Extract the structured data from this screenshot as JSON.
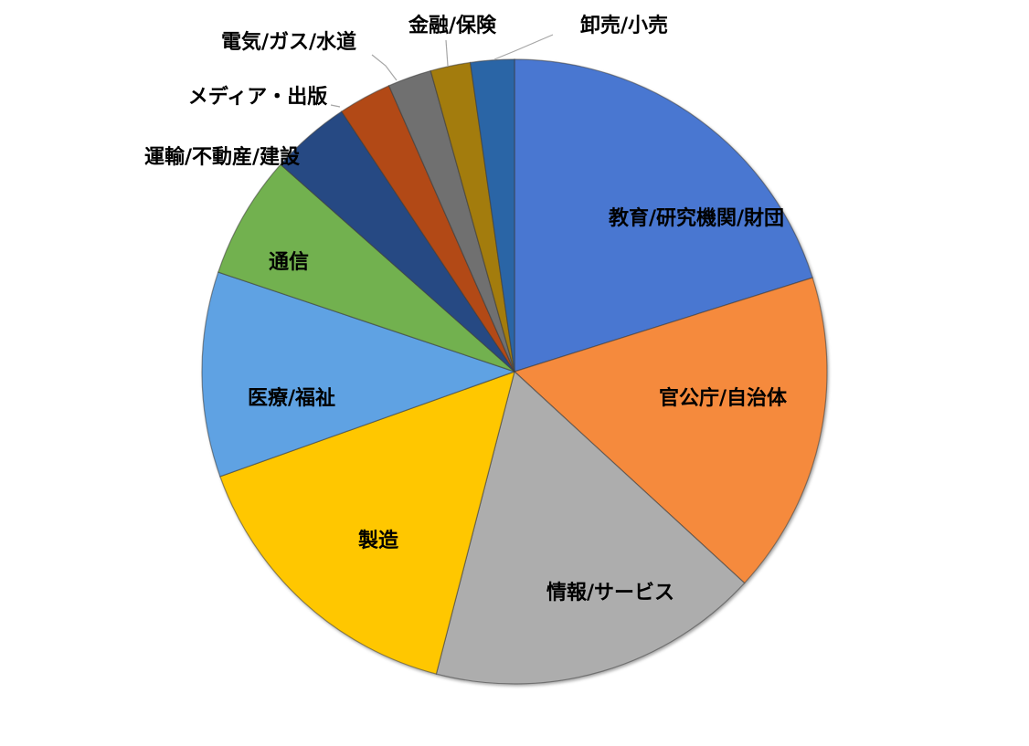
{
  "chart_data": {
    "type": "pie",
    "title": "",
    "legend": "none",
    "start_angle_deg": 0,
    "direction": "clockwise",
    "slices": [
      {
        "label": "教育/研究機関/財団",
        "value": 20.5,
        "color": "#4877d1",
        "label_placement": "inside"
      },
      {
        "label": "官公庁/自治体",
        "value": 17.0,
        "color": "#f58a3c",
        "label_placement": "inside"
      },
      {
        "label": "情報/サービス",
        "value": 17.5,
        "color": "#adadad",
        "label_placement": "inside"
      },
      {
        "label": "製造",
        "value": 15.8,
        "color": "#ffc702",
        "label_placement": "inside"
      },
      {
        "label": "医療/福祉",
        "value": 10.8,
        "color": "#5ea2e3",
        "label_placement": "inside"
      },
      {
        "label": "通信",
        "value": 6.5,
        "color": "#72b14f",
        "label_placement": "inside"
      },
      {
        "label": "運輸/不動産/建設",
        "value": 4.2,
        "color": "#274a83",
        "label_placement": "outside"
      },
      {
        "label": "メディア・出版",
        "value": 2.8,
        "color": "#b24a14",
        "label_placement": "outside"
      },
      {
        "label": "電気/ガス/水道",
        "value": 2.3,
        "color": "#6f6f6f",
        "label_placement": "outside"
      },
      {
        "label": "金融/保険",
        "value": 2.1,
        "color": "#a37b0b",
        "label_placement": "outside"
      },
      {
        "label": "卸売/小売",
        "value": 2.3,
        "color": "#2b65a6",
        "label_placement": "outside"
      }
    ]
  }
}
